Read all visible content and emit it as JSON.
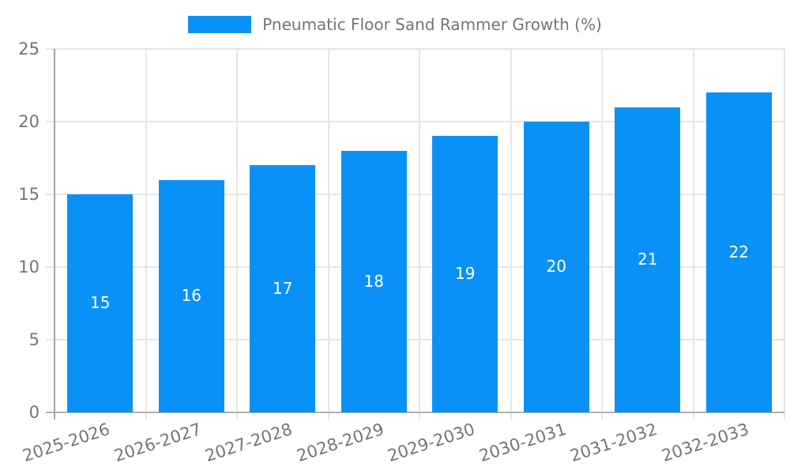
{
  "legend": {
    "label": "Pneumatic Floor Sand Rammer Growth (%)",
    "swatch_color": "#0a91f8"
  },
  "chart_data": {
    "type": "bar",
    "title": "",
    "series_name": "Pneumatic Floor Sand Rammer Growth (%)",
    "categories": [
      "2025-2026",
      "2026-2027",
      "2027-2028",
      "2028-2029",
      "2029-2030",
      "2030-2031",
      "2031-2032",
      "2032-2033"
    ],
    "values": [
      15,
      16,
      17,
      18,
      19,
      20,
      21,
      22
    ],
    "value_labels": [
      "15",
      "16",
      "17",
      "18",
      "19",
      "20",
      "21",
      "22"
    ],
    "xlabel": "",
    "ylabel": "",
    "ylim": [
      0,
      25
    ],
    "yticks": [
      0,
      5,
      10,
      15,
      20,
      25
    ],
    "ytick_labels": [
      "0",
      "5",
      "10",
      "15",
      "20",
      "25"
    ],
    "grid": true,
    "legend_position": "top-center",
    "x_label_rotation_deg": -18,
    "bar_color": "#0a91f8",
    "bar_label_color": "#ffffff",
    "axis_text_color": "#757575",
    "gridline_color": "#e6e6e6",
    "axis_line_color": "#a3a3a3"
  }
}
